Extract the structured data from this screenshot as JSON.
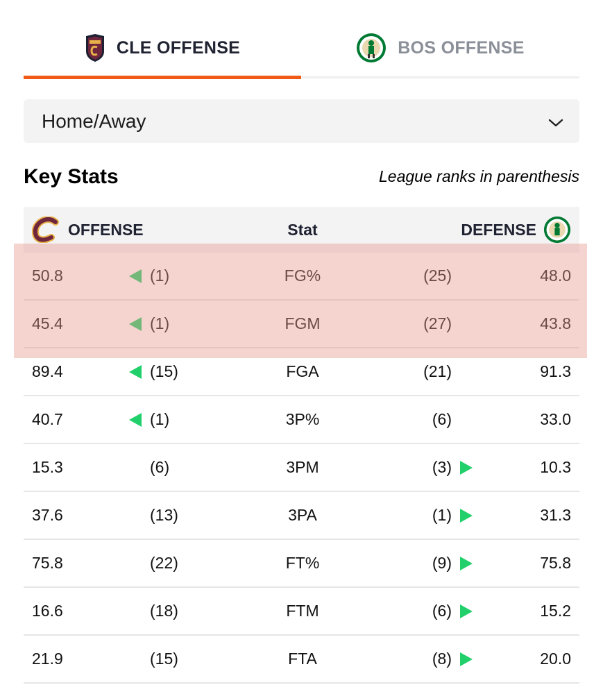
{
  "tabs": [
    {
      "label": "CLE OFFENSE",
      "active": true
    },
    {
      "label": "BOS OFFENSE",
      "active": false
    }
  ],
  "colors": {
    "accent": "#f05a14",
    "up": "#22d06b",
    "highlight": "#e8968c"
  },
  "filter": {
    "selected": "Home/Away"
  },
  "key_stats": {
    "title": "Key Stats",
    "note": "League ranks in parenthesis"
  },
  "table": {
    "headers": {
      "offense": "OFFENSE",
      "stat": "Stat",
      "defense": "DEFENSE"
    },
    "rows": [
      {
        "off": "50.8",
        "off_rank": "(1)",
        "off_arrow": true,
        "stat": "FG%",
        "def_rank": "(25)",
        "def_arrow": false,
        "def": "48.0"
      },
      {
        "off": "45.4",
        "off_rank": "(1)",
        "off_arrow": true,
        "stat": "FGM",
        "def_rank": "(27)",
        "def_arrow": false,
        "def": "43.8"
      },
      {
        "off": "89.4",
        "off_rank": "(15)",
        "off_arrow": true,
        "stat": "FGA",
        "def_rank": "(21)",
        "def_arrow": false,
        "def": "91.3"
      },
      {
        "off": "40.7",
        "off_rank": "(1)",
        "off_arrow": true,
        "stat": "3P%",
        "def_rank": "(6)",
        "def_arrow": false,
        "def": "33.0"
      },
      {
        "off": "15.3",
        "off_rank": "(6)",
        "off_arrow": false,
        "stat": "3PM",
        "def_rank": "(3)",
        "def_arrow": true,
        "def": "10.3"
      },
      {
        "off": "37.6",
        "off_rank": "(13)",
        "off_arrow": false,
        "stat": "3PA",
        "def_rank": "(1)",
        "def_arrow": true,
        "def": "31.3"
      },
      {
        "off": "75.8",
        "off_rank": "(22)",
        "off_arrow": false,
        "stat": "FT%",
        "def_rank": "(9)",
        "def_arrow": true,
        "def": "75.8"
      },
      {
        "off": "16.6",
        "off_rank": "(18)",
        "off_arrow": false,
        "stat": "FTM",
        "def_rank": "(6)",
        "def_arrow": true,
        "def": "15.2"
      },
      {
        "off": "21.9",
        "off_rank": "(15)",
        "off_arrow": false,
        "stat": "FTA",
        "def_rank": "(8)",
        "def_arrow": true,
        "def": "20.0"
      }
    ]
  }
}
